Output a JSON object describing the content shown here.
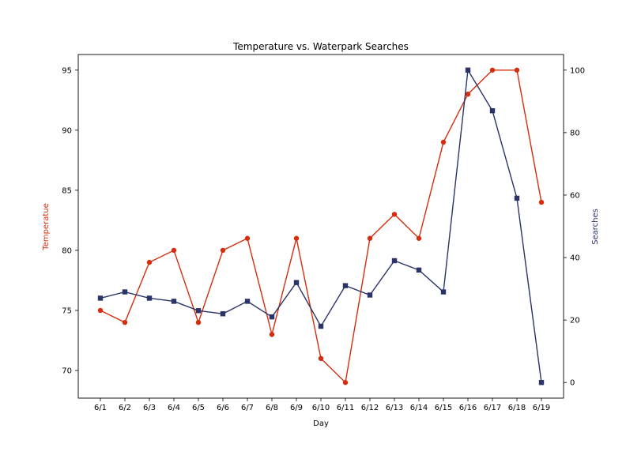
{
  "chart_data": {
    "type": "line",
    "title": "Temperature vs. Waterpark Searches",
    "xlabel": "Day",
    "ylabel_left": "Temperatue",
    "ylabel_right": "Searches",
    "categories": [
      "6/1",
      "6/2",
      "6/3",
      "6/4",
      "6/5",
      "6/6",
      "6/7",
      "6/8",
      "6/9",
      "6/10",
      "6/11",
      "6/12",
      "6/13",
      "6/14",
      "6/15",
      "6/16",
      "6/17",
      "6/18",
      "6/19"
    ],
    "series": [
      {
        "axis": "left",
        "color": "#d62d0e",
        "marker": "circle",
        "values": [
          75,
          74,
          79,
          80,
          74,
          80,
          81,
          73,
          81,
          71,
          69,
          81,
          83,
          81,
          89,
          93,
          95,
          95,
          84
        ]
      },
      {
        "axis": "right",
        "color": "#2b3467",
        "marker": "square",
        "values": [
          27,
          29,
          27,
          26,
          23,
          22,
          26,
          21,
          32,
          18,
          31,
          28,
          39,
          36,
          29,
          100,
          87,
          59,
          0
        ]
      }
    ],
    "yticks_left": [
      70,
      75,
      80,
      85,
      90,
      95
    ],
    "ylim_left": [
      67.7,
      96.3
    ],
    "yticks_right": [
      0,
      20,
      40,
      60,
      80,
      100
    ],
    "ylim_right": [
      -5,
      105
    ],
    "grid": false,
    "legend": "none",
    "left_label_color": "#d62d0e",
    "right_label_color": "#2b3467"
  }
}
